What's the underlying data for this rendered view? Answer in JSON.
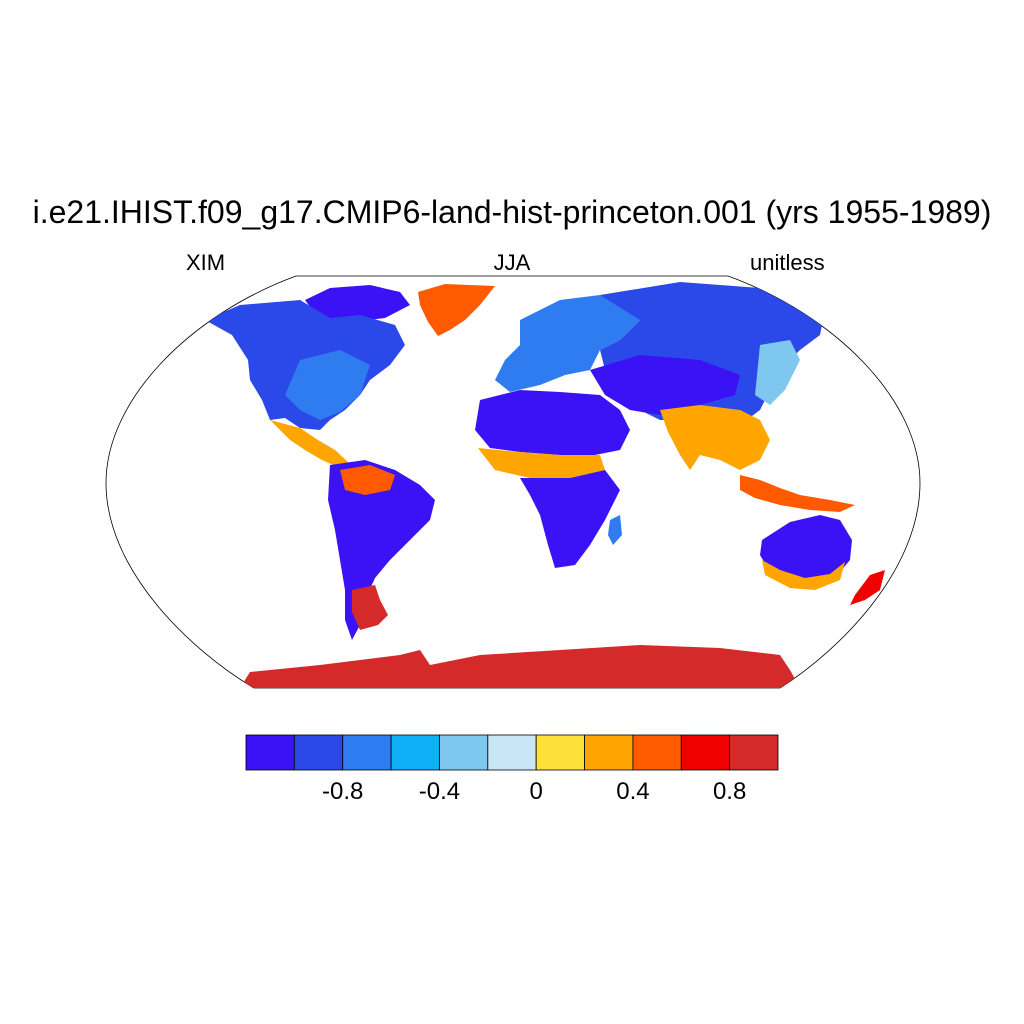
{
  "figure": {
    "title": "i.e21.IHIST.f09_g17.CMIP6-land-hist-princeton.001 (yrs 1955-1989)",
    "left_label": "XIM",
    "center_label": "JJA",
    "right_label": "unitless",
    "projection": "robinson"
  },
  "colorbar": {
    "colors": [
      "#3b12f5",
      "#2a49e8",
      "#2f7cf0",
      "#0fb0f8",
      "#7ec8f0",
      "#c8e6f6",
      "#fde13a",
      "#ffa500",
      "#ff5a00",
      "#f00000",
      "#d42a2a"
    ],
    "boundaries": [
      -1.0,
      -0.8,
      -0.6,
      -0.4,
      -0.2,
      0,
      0.2,
      0.4,
      0.6,
      0.8,
      1.0
    ],
    "tick_labels": [
      "-0.8",
      "-0.4",
      "0",
      "0.4",
      "0.8"
    ],
    "tick_values": [
      -0.8,
      -0.4,
      0,
      0.4,
      0.8
    ]
  }
}
